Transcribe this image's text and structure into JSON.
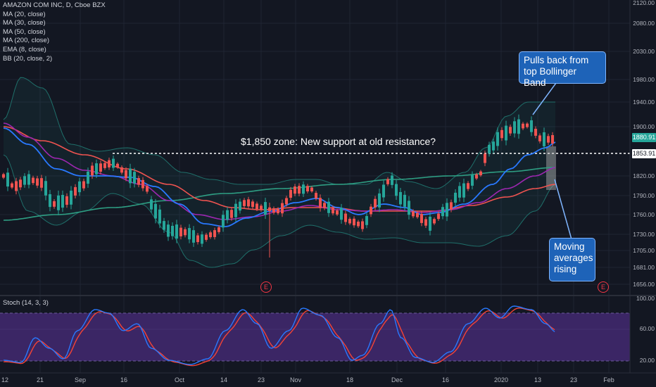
{
  "legend": {
    "title": "AMAZON COM INC, D, Cboe BZX",
    "lines": [
      "MA (20, close)",
      "MA (30, close)",
      "MA (50, close)",
      "MA (200, close)",
      "EMA (8, close)",
      "BB (20, close, 2)"
    ]
  },
  "price_axis": [
    "2120.00",
    "2080.00",
    "2030.00",
    "1980.00",
    "1940.00",
    "1900.00",
    "1880.91",
    "1853.91",
    "1820.00",
    "1790.00",
    "1760.00",
    "1730.00",
    "1705.00",
    "1681.00",
    "1656.00"
  ],
  "price_box_current": "1880.91",
  "price_box_support": "1853.91",
  "stoch": {
    "title": "Stoch (14, 3, 3)",
    "axis": [
      "100.00",
      "60.00",
      "20.00"
    ]
  },
  "time_axis": [
    "12",
    "21",
    "Sep",
    "16",
    "Oct",
    "14",
    "23",
    "Nov",
    "18",
    "Dec",
    "16",
    "2020",
    "13",
    "23",
    "Feb"
  ],
  "annotations": {
    "support_text": "$1,850 zone: New support at old resistance?",
    "callout_top": "Pulls back from top Bollinger Band",
    "callout_bottom": "Moving averages rising"
  },
  "earnings_badge": "E",
  "colors": {
    "background": "#131722",
    "up_candle": "#26a69a",
    "down_candle": "#ef5350",
    "ma20": "#2962ff",
    "ma50": "#9c27b0",
    "ma200": "#ef5350",
    "ma_long": "#26a69a",
    "stoch_k": "#2962ff",
    "stoch_d": "#f44336",
    "stoch_band": "#3d2a6e"
  }
}
